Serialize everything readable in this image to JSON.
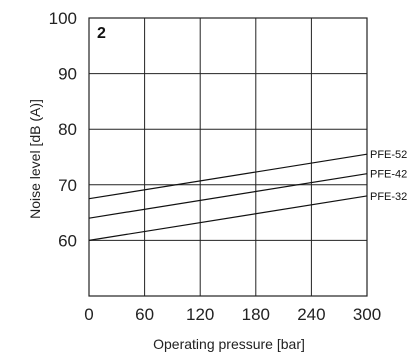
{
  "chart_data": {
    "type": "line",
    "panel_label": "2",
    "xlabel": "Operating pressure [bar]",
    "ylabel": "Noise level [dB (A)]",
    "xlim": [
      0,
      300
    ],
    "ylim": [
      50,
      100
    ],
    "x_ticks": [
      0,
      60,
      120,
      180,
      240,
      300
    ],
    "y_ticks": [
      60,
      70,
      80,
      90,
      100
    ],
    "grid": true,
    "series": [
      {
        "name": "PFE-52",
        "x": [
          0,
          300
        ],
        "y": [
          67.5,
          75.5
        ]
      },
      {
        "name": "PFE-42",
        "x": [
          0,
          300
        ],
        "y": [
          64,
          72
        ]
      },
      {
        "name": "PFE-32",
        "x": [
          0,
          300
        ],
        "y": [
          60,
          68
        ]
      }
    ],
    "colors": {
      "grid": "#222222",
      "line": "#111111"
    }
  }
}
